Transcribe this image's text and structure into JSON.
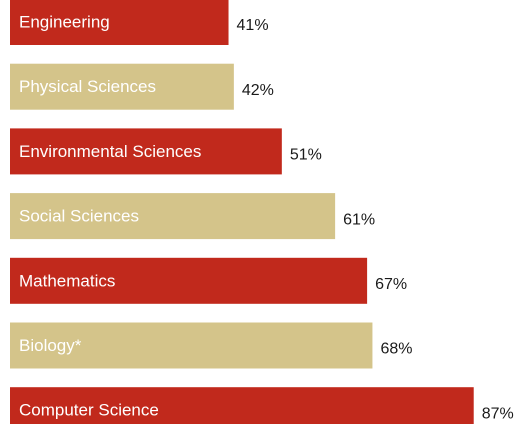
{
  "chart_data": {
    "type": "bar",
    "categories": [
      "Engineering",
      "Physical Sciences",
      "Environmental Sciences",
      "Social Sciences",
      "Mathematics",
      "Biology*",
      "Computer Science"
    ],
    "values": [
      41,
      42,
      51,
      61,
      67,
      68,
      87
    ],
    "value_labels": [
      "41%",
      "42%",
      "51%",
      "61%",
      "67%",
      "68%",
      "87%"
    ],
    "colors": [
      "#c1291c",
      "#d4c48a",
      "#c1291c",
      "#d4c48a",
      "#c1291c",
      "#d4c48a",
      "#c1291c"
    ]
  }
}
